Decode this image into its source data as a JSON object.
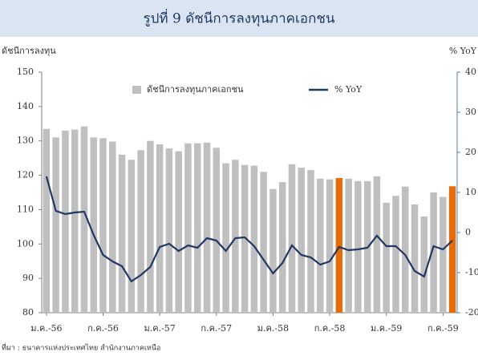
{
  "chart_data": {
    "type": "bar",
    "title": "รูปที่ 9 ดัชนีการลงทุนภาคเอกชน",
    "y_label": "ดัชนีการลงทุน",
    "y2_label": "% YoY",
    "source": "ที่มา : ธนาคารแห่งประเทศไทย สำนักงานภาคเหนือ",
    "legend": "top",
    "categories": [
      "ม.ค.-56",
      null,
      null,
      null,
      null,
      null,
      "ก.ค.-56",
      null,
      null,
      null,
      null,
      null,
      "ม.ค.-57",
      null,
      null,
      null,
      null,
      null,
      "ก.ค.-57",
      null,
      null,
      null,
      null,
      null,
      "ม.ค.-58",
      null,
      null,
      null,
      null,
      null,
      "ก.ค.-58",
      null,
      null,
      null,
      null,
      null,
      "ม.ค.-59",
      null,
      null,
      null,
      null,
      null,
      "ก.ค.-59",
      null
    ],
    "series": [
      {
        "name": "ดัชนีการลงทุนภาคเอกชน",
        "type": "bar",
        "color": "#bfbfbf",
        "colors": [
          "#bfbfbf",
          "#bfbfbf",
          "#bfbfbf",
          "#bfbfbf",
          "#bfbfbf",
          "#bfbfbf",
          "#bfbfbf",
          "#bfbfbf",
          "#bfbfbf",
          "#bfbfbf",
          "#bfbfbf",
          "#bfbfbf",
          "#bfbfbf",
          "#bfbfbf",
          "#bfbfbf",
          "#bfbfbf",
          "#bfbfbf",
          "#bfbfbf",
          "#bfbfbf",
          "#bfbfbf",
          "#bfbfbf",
          "#bfbfbf",
          "#bfbfbf",
          "#bfbfbf",
          "#bfbfbf",
          "#bfbfbf",
          "#bfbfbf",
          "#bfbfbf",
          "#bfbfbf",
          "#bfbfbf",
          "#bfbfbf",
          "#e46c0a",
          "#bfbfbf",
          "#bfbfbf",
          "#bfbfbf",
          "#bfbfbf",
          "#bfbfbf",
          "#bfbfbf",
          "#bfbfbf",
          "#bfbfbf",
          "#bfbfbf",
          "#bfbfbf",
          "#bfbfbf",
          "#e46c0a"
        ],
        "values": [
          133.5,
          131,
          133,
          133.3,
          134.2,
          131,
          130.8,
          129.8,
          126,
          124.5,
          127.3,
          130,
          129,
          127.8,
          127,
          129.3,
          129.3,
          129.5,
          128,
          123.5,
          124.5,
          123,
          122.8,
          121,
          116,
          118,
          123.2,
          122.2,
          121.5,
          119,
          118.8,
          119.2,
          119,
          118.3,
          118.3,
          119.7,
          112,
          114,
          116.7,
          111.5,
          108,
          115,
          113.7,
          116.8
        ]
      },
      {
        "name": "% YoY",
        "type": "line",
        "color": "#1f3864",
        "axis": "y2",
        "values": [
          14,
          5.4,
          4.6,
          5,
          5.2,
          -0.6,
          -5.6,
          -7.2,
          -8.4,
          -12.2,
          -10.6,
          -8.6,
          -3.6,
          -2.8,
          -4.6,
          -3.2,
          -3.8,
          -1.4,
          -2,
          -4.6,
          -1.4,
          -1.2,
          -3.4,
          -6.8,
          -10.2,
          -7.6,
          -3.2,
          -5.6,
          -6.2,
          -8,
          -7.2,
          -3.6,
          -4.4,
          -4.2,
          -3.8,
          -0.8,
          -3.4,
          -3.4,
          -5.6,
          -9.6,
          -11,
          -3.4,
          -4.2,
          -2
        ]
      }
    ],
    "ylim": [
      80,
      150
    ],
    "yticks": [
      80,
      90,
      100,
      110,
      120,
      130,
      140,
      150
    ],
    "y2lim": [
      -20,
      40
    ],
    "y2ticks": [
      -20,
      -10,
      0,
      10,
      20,
      30,
      40
    ]
  }
}
